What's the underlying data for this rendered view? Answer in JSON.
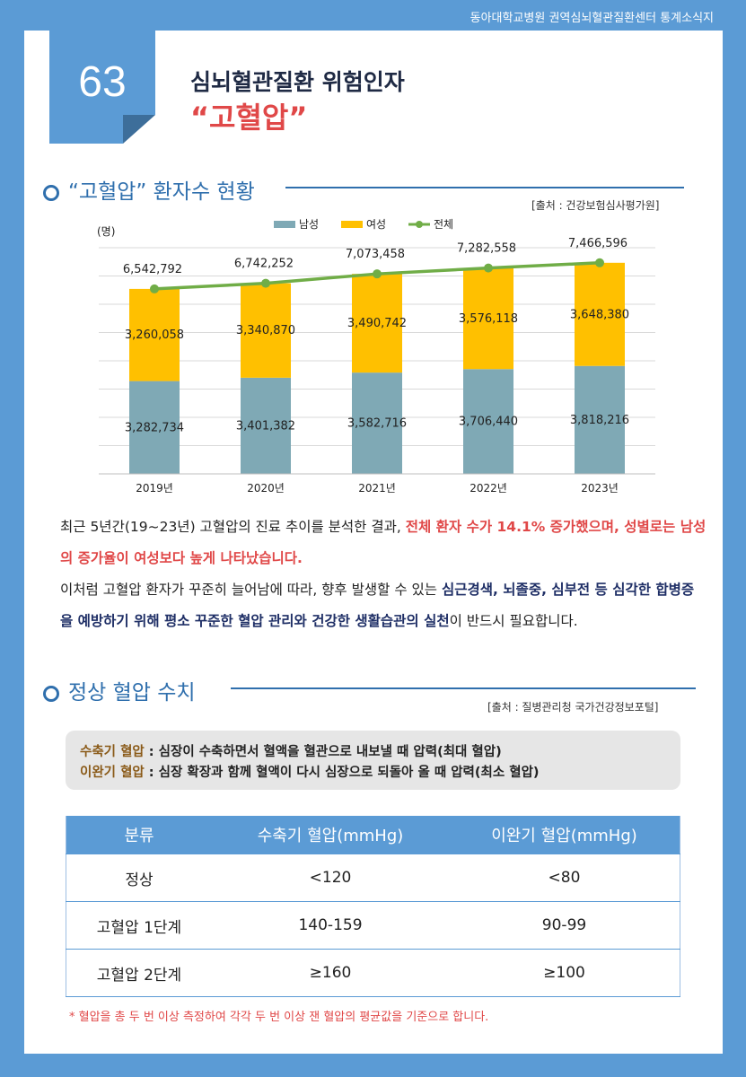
{
  "header": {
    "org": "동아대학교병원 권역심뇌혈관질환센터 통계소식지"
  },
  "issue": {
    "number": "63"
  },
  "title": {
    "line1": "심뇌혈관질환 위험인자",
    "line2": "“고혈압”"
  },
  "section1": {
    "heading": "“고혈압” 환자수 현황",
    "source": "[출처 : 건강보험심사평가원]"
  },
  "chart_data": {
    "type": "bar",
    "unit_label": "(명)",
    "categories": [
      "2019년",
      "2020년",
      "2021년",
      "2022년",
      "2023년"
    ],
    "series": [
      {
        "name": "남성",
        "values": [
          3282734,
          3401382,
          3582716,
          3706440,
          3818216
        ],
        "labels": [
          "3,282,734",
          "3,401,382",
          "3,582,716",
          "3,706,440",
          "3,818,216"
        ],
        "color": "#7fa9b5"
      },
      {
        "name": "여성",
        "values": [
          3260058,
          3340870,
          3490742,
          3576118,
          3648380
        ],
        "labels": [
          "3,260,058",
          "3,340,870",
          "3,490,742",
          "3,576,118",
          "3,648,380"
        ],
        "color": "#ffc000"
      },
      {
        "name": "전체",
        "values": [
          6542792,
          6742252,
          7073458,
          7282558,
          7466596
        ],
        "labels": [
          "6,542,792",
          "6,742,252",
          "7,073,458",
          "7,282,558",
          "7,466,596"
        ],
        "color": "#70ad47"
      }
    ],
    "stacked": true,
    "legend": "top",
    "grid": true
  },
  "paragraph": {
    "p1": "최근 5년간(19~23년) 고혈압의 진료 추이를 분석한 결과, ",
    "p1_red": "전체 환자 수가 14.1% 증가했으며, 성별로는 남성의 증가율이 여성보다 높게 나타났습니다.",
    "p2": "이처럼 고혈압 환자가 꾸준히 늘어남에 따라, 향후 발생할 수 있는 ",
    "p2_navy": "심근경색, 뇌졸중, 심부전 등 심각한 합병증을 예방하기 위해 평소 꾸준한 혈압 관리와 건강한 생활습관의 실천",
    "p2_end": "이 반드시 필요합니다."
  },
  "section2": {
    "heading": "정상 혈압 수치",
    "source": "[출처 : 질병관리청 국가건강정보포털]"
  },
  "definitions": {
    "systolic_label": "수축기 혈압",
    "systolic_text": " : 심장이 수축하면서 혈액을 혈관으로 내보낼 때 압력(최대 혈압)",
    "diastolic_label": "이완기 혈압",
    "diastolic_text": " : 심장 확장과 함께 혈액이 다시 심장으로 되돌아 올 때 압력(최소 혈압)"
  },
  "table": {
    "headers": [
      "분류",
      "수축기 혈압(mmHg)",
      "이완기 혈압(mmHg)"
    ],
    "rows": [
      [
        "정상",
        "<120",
        "<80"
      ],
      [
        "고혈압 1단계",
        "140-159",
        "90-99"
      ],
      [
        "고혈압 2단계",
        "≥160",
        "≥100"
      ]
    ]
  },
  "footnote": "* 혈압을 총 두 번 이상 측정하여 각각 두 번 이상 잰 혈압의 평균값을 기준으로 합니다."
}
